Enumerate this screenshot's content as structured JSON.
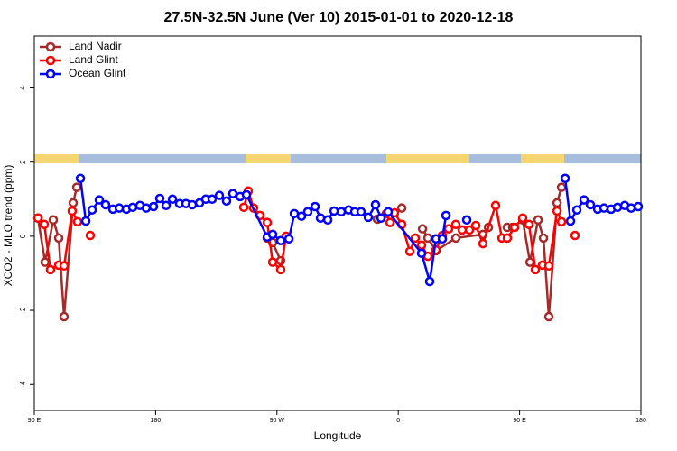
{
  "chart_data": {
    "type": "line",
    "title": "27.5N-32.5N June (Ver 10)   2015-01-01 to 2020-12-18",
    "x_label": "Longitude",
    "y_label": "XCO2 - MLO trend (ppm)",
    "xlim": [
      90,
      540
    ],
    "ylim": [
      -4.7,
      5.4
    ],
    "xticks": [
      {
        "value": 90,
        "label": "90 E"
      },
      180,
      {
        "value": 270,
        "label": "90 W"
      },
      {
        "value": 360,
        "label": "0"
      },
      {
        "value": 450,
        "label": "90 E"
      },
      {
        "value": 540,
        "label": "180"
      }
    ],
    "yticks": [
      -4,
      -2,
      0,
      2,
      4
    ],
    "legend": "top-left",
    "series": [
      {
        "name": "Land Nadir",
        "color": "#a52a2a",
        "x": [
          92.7,
          98,
          104.1,
          108.1,
          112.1,
          118.8,
          121.5,
          200,
          262.8,
          266.8,
          272.8,
          300,
          344.5,
          362.6,
          370,
          378,
          382,
          388,
          402.7,
          422.8,
          426.9,
          430,
          440.9,
          444.9,
          452.3,
          457.7,
          463.7,
          467.7,
          471.7,
          477.8,
          481.1
        ],
        "values": [
          0.49,
          -0.7,
          0.44,
          -0.05,
          -2.17,
          0.9,
          1.32,
          null,
          -0.05,
          -0.17,
          -0.66,
          null,
          0.46,
          0.76,
          null,
          0.2,
          -0.05,
          -0.39,
          -0.05,
          0.05,
          0.24,
          null,
          0.24,
          0.24,
          0.44,
          -0.7,
          0.44,
          -0.05,
          -2.17,
          0.9,
          1.32
        ]
      },
      {
        "name": "Land Glint",
        "color": "#ff0000",
        "x": [
          92.7,
          97.4,
          102,
          108.1,
          112.1,
          118.1,
          122.1,
          127,
          131.5,
          200,
          245.4,
          248.7,
          252.7,
          257.4,
          262.8,
          266.8,
          272.8,
          276.8,
          320,
          351.2,
          353.9,
          357.2,
          362.6,
          368.6,
          372.6,
          377.3,
          382,
          388,
          392.7,
          397.4,
          402.7,
          407.4,
          412.8,
          417.5,
          422.8,
          432.2,
          436.9,
          440.9,
          446.3,
          452.3,
          457,
          461.7,
          467,
          471.7,
          477.8,
          481.1,
          486,
          491.1
        ],
        "values": [
          0.49,
          0.32,
          -0.9,
          -0.78,
          -0.8,
          0.68,
          0.39,
          null,
          0.02,
          null,
          0.78,
          1.22,
          0.76,
          0.56,
          0.37,
          -0.7,
          -0.9,
          0.0,
          null,
          0.61,
          0.37,
          0.63,
          0.32,
          -0.41,
          -0.05,
          -0.24,
          -0.54,
          -0.37,
          0.02,
          0.2,
          0.32,
          0.17,
          0.17,
          0.29,
          -0.2,
          0.83,
          -0.05,
          -0.05,
          0.24,
          0.49,
          0.32,
          -0.9,
          -0.78,
          -0.8,
          0.68,
          0.39,
          null,
          0.02
        ]
      },
      {
        "name": "Ocean Glint",
        "color": "#0000ff",
        "x": [
          124.2,
          128.2,
          132.9,
          138.2,
          142.9,
          148.3,
          153,
          158.3,
          163,
          168.4,
          173,
          178.4,
          183.1,
          187.8,
          192.5,
          197.8,
          202.5,
          207.2,
          212.6,
          217.2,
          221.9,
          227.3,
          232.6,
          237.3,
          242.7,
          247.4,
          262.8,
          266.8,
          272.8,
          278.9,
          282.9,
          288.2,
          292.9,
          298.3,
          302.3,
          307.7,
          312.4,
          317.7,
          323.1,
          327.7,
          332.4,
          337.8,
          343.1,
          347.2,
          352.5,
          377.3,
          383.3,
          388,
          392.7,
          395.4,
          403,
          410.8,
          450,
          483.8,
          487.8,
          492.5,
          497.8,
          502.5,
          507.9,
          512.6,
          517.9,
          522.6,
          528,
          532.7,
          538
        ],
        "values": [
          1.56,
          0.41,
          0.71,
          0.98,
          0.85,
          0.73,
          0.76,
          0.73,
          0.78,
          0.83,
          0.76,
          0.8,
          1.02,
          0.83,
          1.0,
          0.88,
          0.88,
          0.85,
          0.9,
          1.0,
          1.0,
          1.1,
          0.95,
          1.15,
          1.07,
          1.12,
          -0.02,
          0.05,
          -0.12,
          -0.07,
          0.61,
          0.54,
          0.66,
          0.8,
          0.49,
          0.44,
          0.68,
          0.66,
          0.71,
          0.66,
          0.66,
          0.51,
          0.85,
          0.49,
          0.66,
          -0.46,
          -1.22,
          -0.07,
          -0.07,
          0.56,
          null,
          0.44,
          null,
          1.56,
          0.41,
          0.71,
          0.98,
          0.85,
          0.73,
          0.76,
          0.73,
          0.78,
          0.83,
          0.76,
          0.8
        ]
      }
    ]
  }
}
